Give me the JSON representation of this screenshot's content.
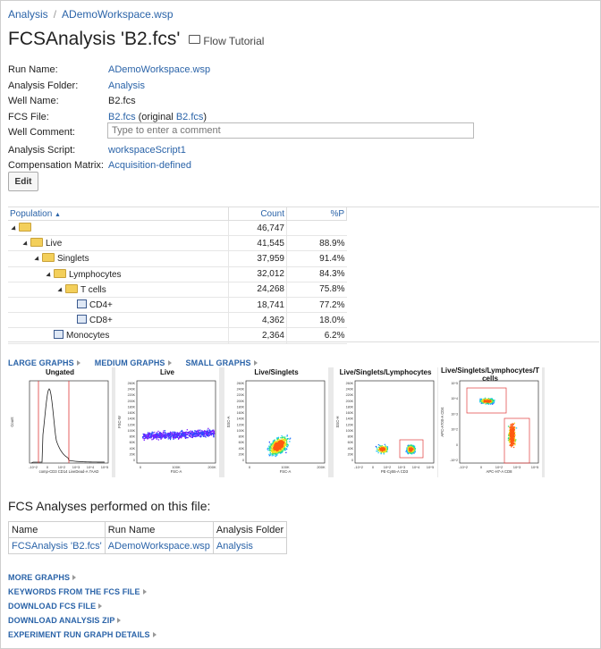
{
  "breadcrumb": {
    "items": [
      "Analysis",
      "ADemoWorkspace.wsp"
    ],
    "separator": "/"
  },
  "title": {
    "main": "FCSAnalysis 'B2.fcs'",
    "folder_link": "Flow Tutorial"
  },
  "properties": {
    "run_name": {
      "label": "Run Name:",
      "value": "ADemoWorkspace.wsp"
    },
    "analysis_folder": {
      "label": "Analysis Folder:",
      "value": "Analysis"
    },
    "well_name": {
      "label": "Well Name:",
      "value": "B2.fcs"
    },
    "fcs_file": {
      "label": "FCS File:",
      "value": "B2.fcs",
      "original_prefix": "(original ",
      "original_value": "B2.fcs",
      "original_suffix": ")"
    },
    "well_comment": {
      "label": "Well Comment:",
      "placeholder": "Type to enter a comment"
    },
    "analysis_script": {
      "label": "Analysis Script:",
      "value": "workspaceScript1"
    },
    "compensation_matrix": {
      "label": "Compensation Matrix:",
      "value": "Acquisition-defined"
    }
  },
  "edit_button": "Edit",
  "population_table": {
    "headers": {
      "population": "Population",
      "count": "Count",
      "percent": "%P"
    },
    "rows": [
      {
        "name": "",
        "count": "46,747",
        "percent": "",
        "indent": 0,
        "icon": "folder",
        "expanded": true
      },
      {
        "name": "Live",
        "count": "41,545",
        "percent": "88.9%",
        "indent": 1,
        "icon": "folder",
        "expanded": true
      },
      {
        "name": "Singlets",
        "count": "37,959",
        "percent": "91.4%",
        "indent": 2,
        "icon": "folder",
        "expanded": true
      },
      {
        "name": "Lymphocytes",
        "count": "32,012",
        "percent": "84.3%",
        "indent": 3,
        "icon": "folder",
        "expanded": true
      },
      {
        "name": "T cells",
        "count": "24,268",
        "percent": "75.8%",
        "indent": 4,
        "icon": "folder",
        "expanded": true
      },
      {
        "name": "CD4+",
        "count": "18,741",
        "percent": "77.2%",
        "indent": 5,
        "icon": "gate",
        "expanded": false
      },
      {
        "name": "CD8+",
        "count": "4,362",
        "percent": "18.0%",
        "indent": 5,
        "icon": "gate",
        "expanded": false
      },
      {
        "name": "Monocytes",
        "count": "2,364",
        "percent": "6.2%",
        "indent": 3,
        "icon": "gate",
        "expanded": false
      }
    ]
  },
  "graph_links": [
    "LARGE GRAPHS",
    "MEDIUM GRAPHS",
    "SMALL GRAPHS"
  ],
  "graphs": [
    {
      "title": "Ungated",
      "xlabel": "comp-CD3 CD14 LiveDead-A 7AAD",
      "ylabel": "Count",
      "yticks": [],
      "xticks": [
        "-10^2",
        "0",
        "10^2",
        "10^3",
        "10^4",
        "10^5"
      ]
    },
    {
      "title": "Live",
      "xlabel": "FSC-A",
      "ylabel": "FSC-W",
      "yticks": [
        "260K",
        "240K",
        "220K",
        "200K",
        "180K",
        "160K",
        "140K",
        "120K",
        "100K",
        "80K",
        "60K",
        "40K",
        "20K",
        "0"
      ],
      "xticks": [
        "0",
        "100K",
        "200K"
      ]
    },
    {
      "title": "Live/Singlets",
      "xlabel": "FSC-A",
      "ylabel": "SSC-A",
      "yticks": [
        "260K",
        "240K",
        "220K",
        "200K",
        "180K",
        "160K",
        "140K",
        "120K",
        "100K",
        "80K",
        "60K",
        "40K",
        "20K",
        "0"
      ],
      "xticks": [
        "0",
        "100K",
        "200K"
      ]
    },
    {
      "title": "Live/Singlets/Lymphocytes",
      "xlabel": "PE-Cy55-A CD3",
      "ylabel": "SSC-H",
      "yticks": [
        "260K",
        "240K",
        "220K",
        "200K",
        "180K",
        "160K",
        "140K",
        "120K",
        "100K",
        "80K",
        "60K",
        "40K",
        "20K",
        "0"
      ],
      "xticks": [
        "-10^2",
        "0",
        "10^2",
        "10^3",
        "10^4",
        "10^5"
      ]
    },
    {
      "title": "Live/Singlets/Lymphocytes/T cells",
      "xlabel": "APC-H7-A CD8",
      "ylabel": "APC-A700-A CD4",
      "yticks": [
        "10^5",
        "10^4",
        "10^3",
        "10^2",
        "0",
        "-10^2"
      ],
      "xticks": [
        "-10^2",
        "0",
        "10^2",
        "10^3",
        "10^5"
      ]
    }
  ],
  "analyses": {
    "title": "FCS Analyses performed on this file:",
    "headers": [
      "Name",
      "Run Name",
      "Analysis Folder"
    ],
    "rows": [
      [
        "FCSAnalysis 'B2.fcs'",
        "ADemoWorkspace.wsp",
        "Analysis"
      ]
    ]
  },
  "bottom_links": [
    "MORE GRAPHS",
    "KEYWORDS FROM THE FCS FILE",
    "DOWNLOAD FCS FILE",
    "DOWNLOAD ANALYSIS ZIP",
    "EXPERIMENT RUN GRAPH DETAILS"
  ],
  "colors": {
    "link": "#2a63a8",
    "folder": "#f3cf5a",
    "gate_line": "#e03a3a"
  }
}
